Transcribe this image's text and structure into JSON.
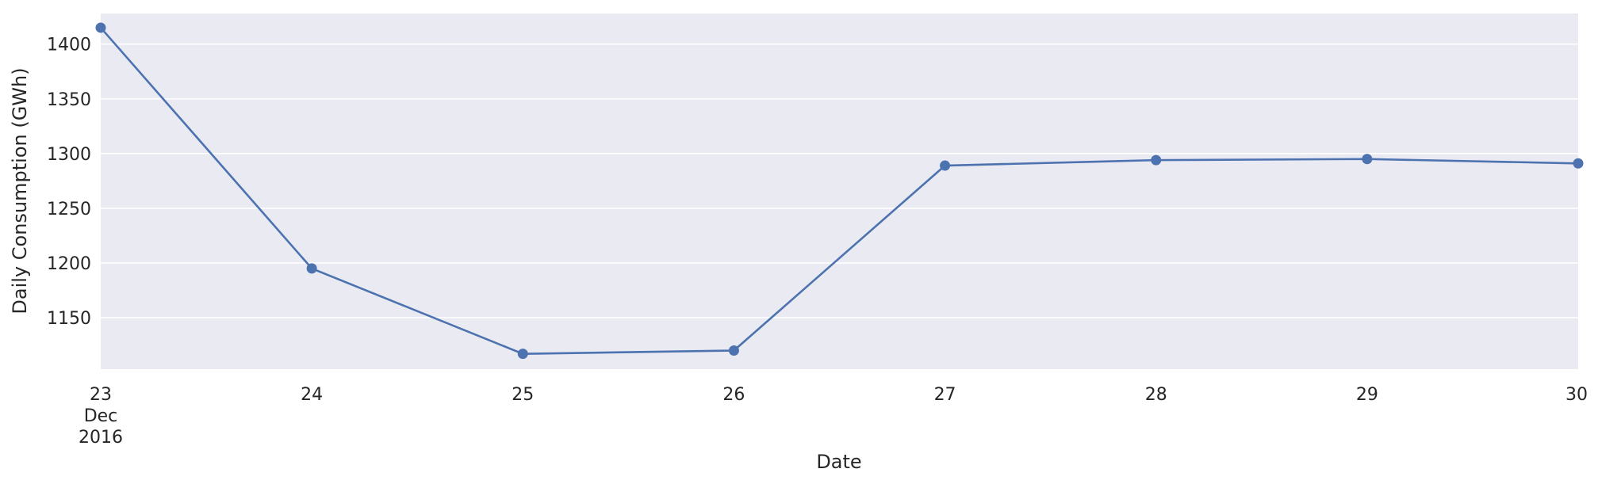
{
  "chart_data": {
    "type": "line",
    "title": "",
    "xlabel": "Date",
    "ylabel": "Daily Consumption (GWh)",
    "x": [
      "2016-12-23",
      "2016-12-24",
      "2016-12-25",
      "2016-12-26",
      "2016-12-27",
      "2016-12-28",
      "2016-12-29",
      "2016-12-30"
    ],
    "x_tick_labels": [
      {
        "day": "23",
        "month": "Dec",
        "year": "2016"
      },
      {
        "day": "24",
        "month": "",
        "year": ""
      },
      {
        "day": "25",
        "month": "",
        "year": ""
      },
      {
        "day": "26",
        "month": "",
        "year": ""
      },
      {
        "day": "27",
        "month": "",
        "year": ""
      },
      {
        "day": "28",
        "month": "",
        "year": ""
      },
      {
        "day": "29",
        "month": "",
        "year": ""
      },
      {
        "day": "30",
        "month": "",
        "year": ""
      }
    ],
    "series": [
      {
        "values": [
          1415,
          1195,
          1117,
          1120,
          1289,
          1294,
          1295,
          1291
        ]
      }
    ],
    "y_ticks": [
      1150,
      1200,
      1250,
      1300,
      1350,
      1400
    ],
    "ylim": [
      1103,
      1428
    ],
    "grid": true,
    "colors": {
      "line": "#4c72b0",
      "plot_background": "#eaeaf2",
      "grid": "#ffffff",
      "text": "#262626"
    }
  }
}
